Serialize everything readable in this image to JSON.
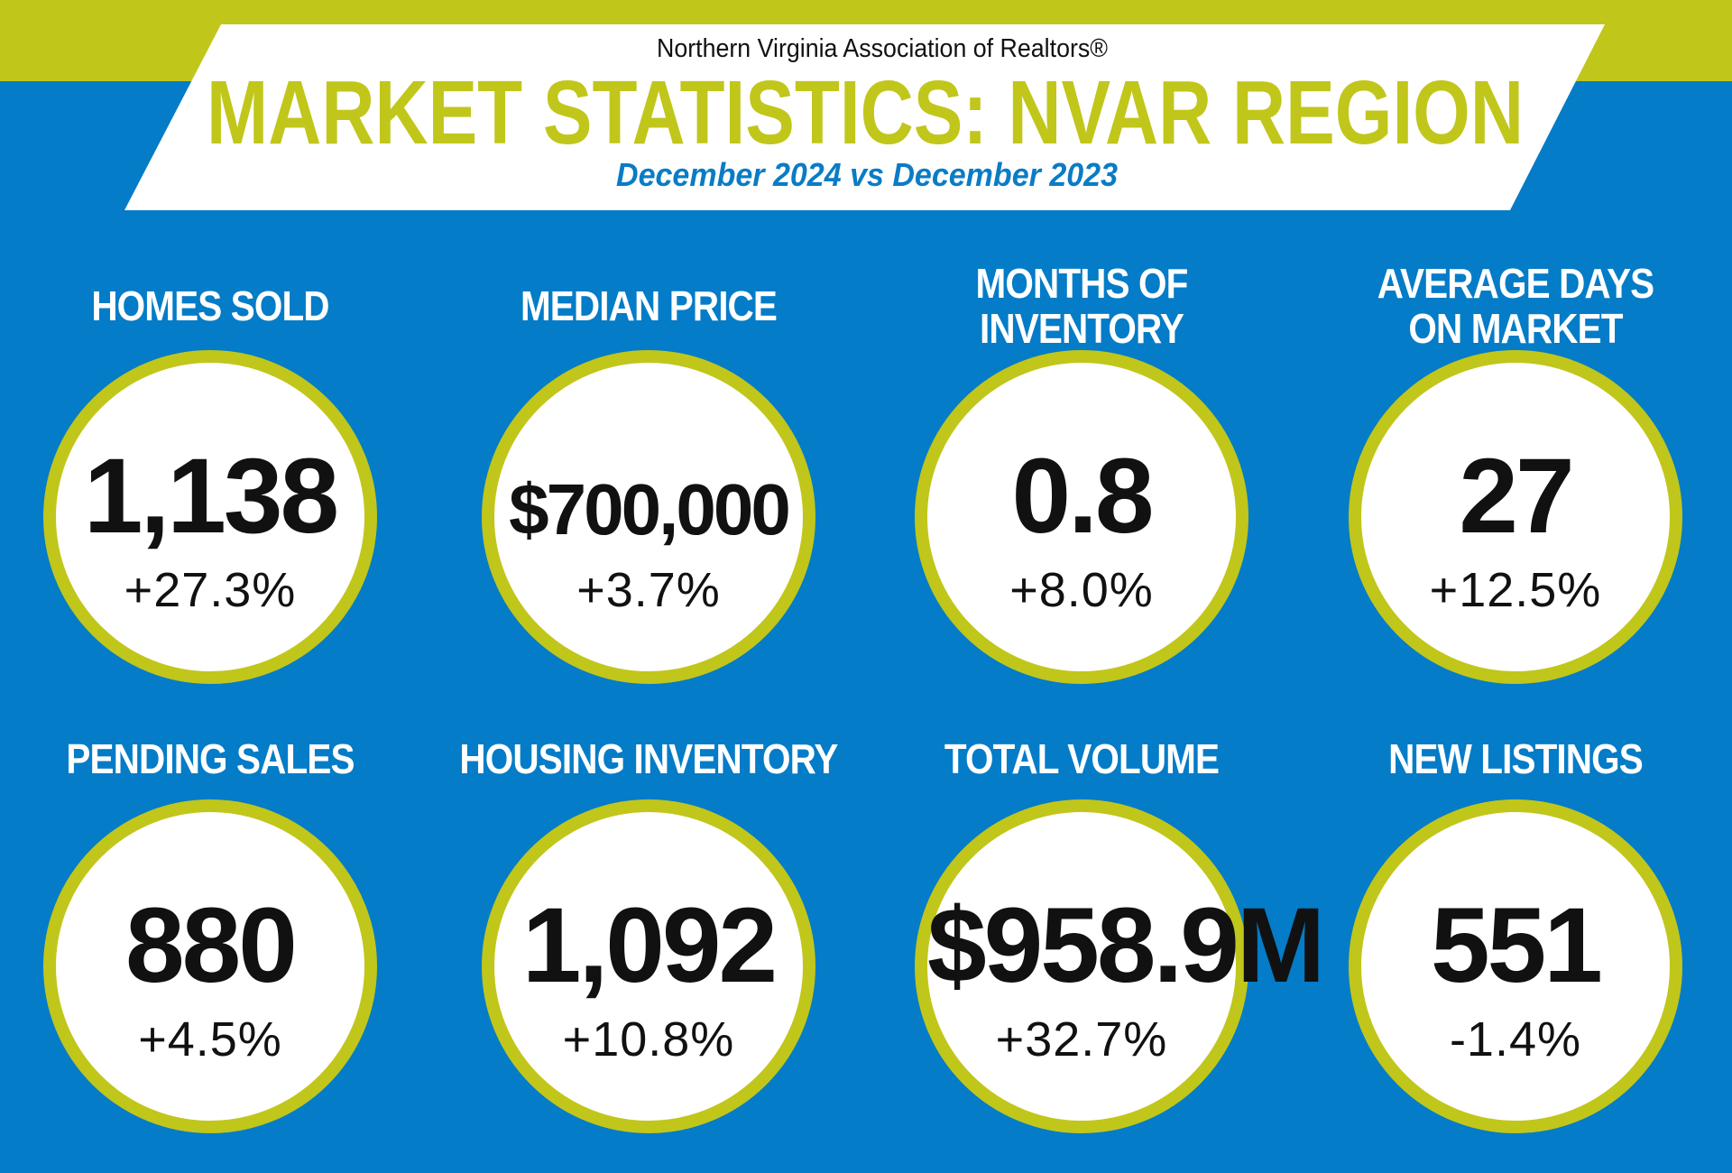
{
  "header": {
    "organization": "Northern Virginia Association of Realtors®",
    "title": "MARKET STATISTICS: NVAR REGION",
    "period": "December 2024 vs December 2023"
  },
  "colors": {
    "background": "#047cc7",
    "accent": "#c1c61b",
    "banner": "#ffffff",
    "period_text": "#0a7cc5"
  },
  "stats": [
    {
      "label_lines": [
        "HOMES SOLD"
      ],
      "value": "1,138",
      "change": "+27.3%"
    },
    {
      "label_lines": [
        "MEDIAN PRICE"
      ],
      "value": "$700,000",
      "change": "+3.7%"
    },
    {
      "label_lines": [
        "MONTHS OF",
        "INVENTORY"
      ],
      "value": "0.8",
      "change": "+8.0%"
    },
    {
      "label_lines": [
        "AVERAGE DAYS",
        "ON MARKET"
      ],
      "value": "27",
      "change": "+12.5%"
    },
    {
      "label_lines": [
        "PENDING SALES"
      ],
      "value": "880",
      "change": "+4.5%"
    },
    {
      "label_lines": [
        "HOUSING INVENTORY"
      ],
      "value": "1,092",
      "change": "+10.8%"
    },
    {
      "label_lines": [
        "TOTAL VOLUME"
      ],
      "value": "$958.9M",
      "change": "+32.7%"
    },
    {
      "label_lines": [
        "NEW LISTINGS"
      ],
      "value": "551",
      "change": "-1.4%"
    }
  ]
}
